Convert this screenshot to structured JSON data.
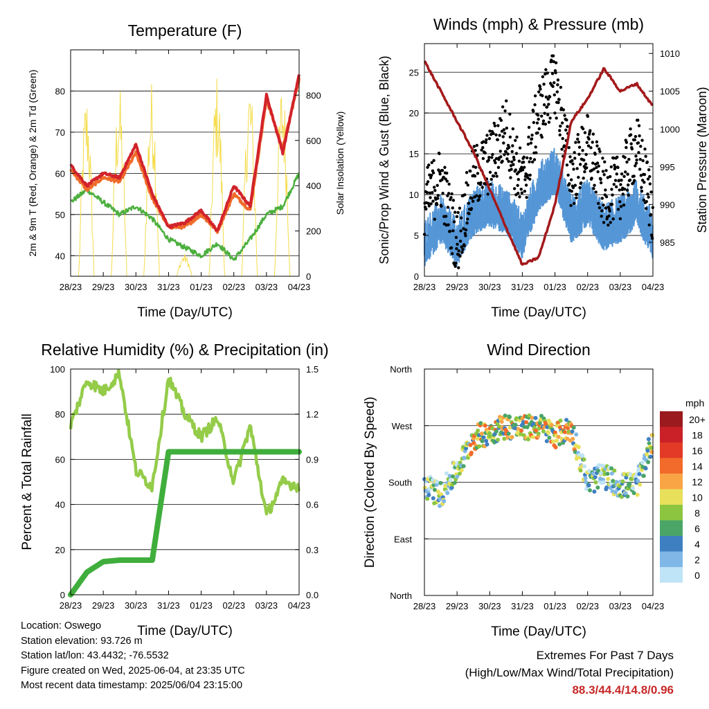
{
  "x_ticks": [
    "28/23",
    "29/23",
    "30/23",
    "31/23",
    "01/23",
    "02/23",
    "03/23",
    "04/23"
  ],
  "colors": {
    "temp_2m": "#d2232a",
    "temp_9m": "#f06b2a",
    "dewpoint": "#4caf3e",
    "solar": "#f4dc4a",
    "wind": "#5596d6",
    "gust": "#000000",
    "pressure": "#a3191b",
    "rh": "#94cc4a",
    "precip": "#3fae3c",
    "extremes": "#c62828"
  },
  "chart_data": [
    {
      "type": "line",
      "title": "Temperature (F)",
      "xlabel": "Time (Day/UTC)",
      "ylabel": "2m & 9m T (Red, Orange) & 2m Td (Green)",
      "ylabel_right": "Solar Insolation (Yellow)",
      "ylim": [
        35,
        90
      ],
      "ylim_right": [
        0,
        1000
      ],
      "y_ticks": [
        40,
        50,
        60,
        70,
        80
      ],
      "y_ticks_right": [
        0,
        200,
        400,
        600,
        800
      ],
      "x": [
        0,
        0.5,
        1,
        1.5,
        2,
        2.5,
        3,
        3.5,
        4,
        4.5,
        5,
        5.5,
        6,
        6.5,
        7
      ],
      "series": [
        {
          "name": "2m T",
          "values": [
            62,
            57,
            60,
            59,
            67,
            55,
            47,
            48,
            51,
            46,
            57,
            52,
            79,
            65,
            84
          ]
        },
        {
          "name": "9m T",
          "values": [
            61,
            56,
            59,
            58,
            65,
            54,
            47,
            47,
            50,
            46,
            55,
            51,
            78,
            66,
            83
          ]
        },
        {
          "name": "2m Td",
          "values": [
            53,
            56,
            53,
            50,
            52,
            49,
            44,
            42,
            40,
            43,
            39,
            44,
            50,
            52,
            60
          ]
        },
        {
          "name": "Solar",
          "values": [
            0,
            820,
            0,
            850,
            0,
            870,
            0,
            100,
            0,
            900,
            0,
            890,
            0,
            880,
            0
          ]
        }
      ]
    },
    {
      "type": "scatter",
      "title": "Winds (mph) & Pressure (mb)",
      "xlabel": "Time (Day/UTC)",
      "ylabel": "Sonic/Prop Wind & Gust (Blue, Black)",
      "ylabel_right": "Station Pressure (Maroon)",
      "ylim": [
        0,
        28.5
      ],
      "ylim_right": [
        980.5,
        1011.3
      ],
      "y_ticks": [
        0,
        5,
        10,
        15,
        20,
        25
      ],
      "y_ticks_right": [
        985,
        990,
        995,
        1000,
        1005,
        1010
      ],
      "x": [
        0,
        0.5,
        1,
        1.5,
        2,
        2.5,
        3,
        3.5,
        4,
        4.5,
        5,
        5.5,
        6,
        6.5,
        7
      ],
      "series": [
        {
          "name": "Wind",
          "values": [
            3,
            6,
            3,
            7,
            8,
            7,
            4,
            10,
            12,
            6,
            8,
            5,
            6,
            8,
            4
          ]
        },
        {
          "name": "Gust",
          "values": [
            9,
            12,
            4,
            12,
            14,
            18,
            11,
            20,
            24,
            12,
            16,
            10,
            11,
            16,
            8
          ]
        },
        {
          "name": "Pressure",
          "values": [
            1009,
            1005,
            1001,
            997,
            992,
            987,
            982,
            983,
            990,
            1001,
            1004,
            1008,
            1005,
            1006,
            1003
          ]
        }
      ]
    },
    {
      "type": "line",
      "title": "Relative Humidity (%) & Precipitation (in)",
      "xlabel": "Time (Day/UTC)",
      "ylabel": "Percent & Total Rainfall",
      "ylim": [
        0,
        100
      ],
      "ylim_right": [
        0,
        1.5
      ],
      "y_ticks": [
        0,
        20,
        40,
        60,
        80,
        100
      ],
      "y_ticks_right": [
        "0.0",
        "0.3",
        "0.6",
        "0.9",
        "1.2",
        "1.5"
      ],
      "x": [
        0,
        0.5,
        1,
        1.5,
        2,
        2.5,
        3,
        3.5,
        4,
        4.5,
        5,
        5.5,
        6,
        6.5,
        7
      ],
      "series": [
        {
          "name": "RH",
          "values": [
            75,
            95,
            90,
            98,
            55,
            48,
            96,
            80,
            70,
            78,
            50,
            75,
            35,
            50,
            48
          ]
        },
        {
          "name": "Precipitation",
          "values": [
            0,
            0.15,
            0.22,
            0.23,
            0.23,
            0.23,
            0.95,
            0.95,
            0.95,
            0.95,
            0.95,
            0.95,
            0.95,
            0.95,
            0.95
          ]
        }
      ]
    },
    {
      "type": "scatter",
      "title": "Wind Direction",
      "xlabel": "Time (Day/UTC)",
      "ylabel": "Direction (Colored By Speed)",
      "y_ticks": [
        "North",
        "East",
        "South",
        "West",
        "North"
      ],
      "ylim": [
        0,
        360
      ],
      "colorbar_title": "mph",
      "colorbar_labels": [
        "20+",
        "18",
        "16",
        "14",
        "12",
        "10",
        "8",
        "6",
        "4",
        "2",
        "0"
      ],
      "colorbar_colors": [
        "#9a1a1e",
        "#c92127",
        "#e23a26",
        "#f26b2a",
        "#f9a546",
        "#e8e05a",
        "#8cc641",
        "#4aa567",
        "#3e7fc1",
        "#7fb7e6",
        "#bfe3f7"
      ],
      "x": [
        0,
        0.5,
        1,
        1.5,
        2,
        2.5,
        3,
        3.5,
        4,
        4.5,
        5,
        5.5,
        6,
        6.5,
        7
      ],
      "series": [
        {
          "name": "Direction",
          "values": [
            175,
            160,
            200,
            250,
            260,
            270,
            265,
            270,
            255,
            265,
            180,
            190,
            175,
            175,
            250
          ]
        }
      ]
    }
  ],
  "footer": {
    "location": "Location: Oswego",
    "elevation": "Station elevation: 93.726 m",
    "latlon": "Station lat/lon: 43.4432; -76.5532",
    "created": "Figure created on Wed, 2025-06-04, at 23:35 UTC",
    "recent": "Most recent data timestamp: 2025/06/04 23:15:00"
  },
  "extremes": {
    "title": "Extremes For Past 7 Days",
    "subtitle": "(High/Low/Max Wind/Total Precipitation)",
    "values": "88.3/44.4/14.8/0.96"
  }
}
